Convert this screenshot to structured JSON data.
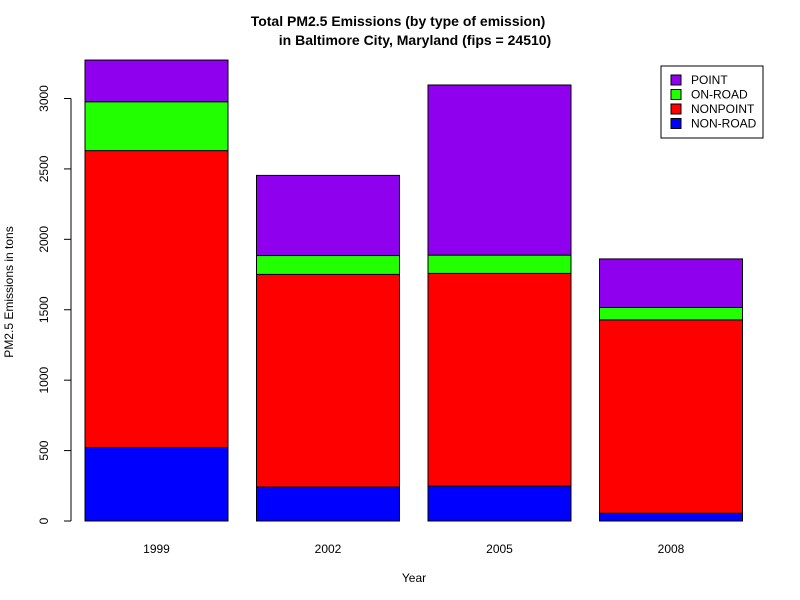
{
  "chart_data": {
    "type": "bar",
    "stacked": true,
    "title_line1": "Total PM2.5 Emissions (by type of emission)",
    "title_line2": "in Baltimore City, Maryland (fips = 24510)",
    "xlabel": "Year",
    "ylabel": "PM2.5 Emissions in tons",
    "categories": [
      "1999",
      "2002",
      "2005",
      "2008"
    ],
    "y_ticks": [
      0,
      500,
      1000,
      1500,
      2000,
      2500,
      3000
    ],
    "ylim": [
      0,
      3300
    ],
    "series": [
      {
        "name": "NON-ROAD",
        "color": "#0000ff",
        "values": [
          522,
          241,
          248,
          55
        ]
      },
      {
        "name": "NONPOINT",
        "color": "#ff0000",
        "values": [
          2108,
          1510,
          1510,
          1373
        ]
      },
      {
        "name": "ON-ROAD",
        "color": "#22ff00",
        "values": [
          347,
          134,
          130,
          88
        ]
      },
      {
        "name": "POINT",
        "color": "#8f00ef",
        "values": [
          296,
          569,
          1208,
          345
        ]
      }
    ],
    "legend_order": [
      "POINT",
      "ON-ROAD",
      "NONPOINT",
      "NON-ROAD"
    ],
    "legend_position": "top-right",
    "grid": false
  }
}
